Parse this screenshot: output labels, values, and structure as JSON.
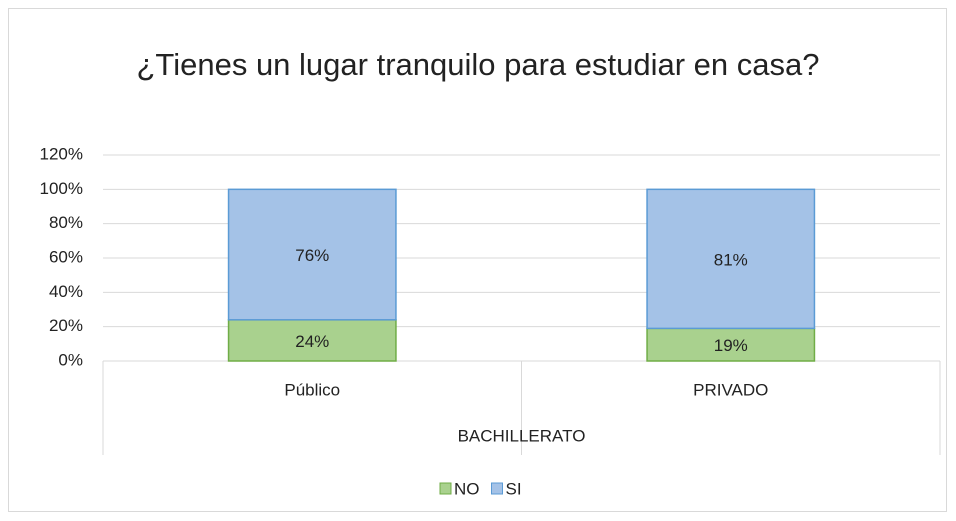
{
  "chart_data": {
    "type": "stacked_bar",
    "title": "¿Tienes un lugar tranquilo para estudiar en casa?",
    "categories": [
      "Público",
      "PRIVADO"
    ],
    "x_label": "BACHILLERATO",
    "series": [
      {
        "name": "NO",
        "color": "#a9d18e",
        "edge": "#70ad47",
        "values": [
          24,
          19
        ],
        "value_labels": [
          "24%",
          "19%"
        ]
      },
      {
        "name": "SI",
        "color": "#a4c2e7",
        "edge": "#5b9bd5",
        "values": [
          76,
          81
        ],
        "value_labels": [
          "76%",
          "81%"
        ]
      }
    ],
    "ylim": [
      0,
      120
    ],
    "yticks": [
      {
        "value": 0,
        "label": "0%"
      },
      {
        "value": 20,
        "label": "20%"
      },
      {
        "value": 40,
        "label": "40%"
      },
      {
        "value": 60,
        "label": "60%"
      },
      {
        "value": 80,
        "label": "80%"
      },
      {
        "value": 100,
        "label": "100%"
      },
      {
        "value": 120,
        "label": "120%"
      }
    ],
    "grid": true,
    "legend": "bottom"
  }
}
